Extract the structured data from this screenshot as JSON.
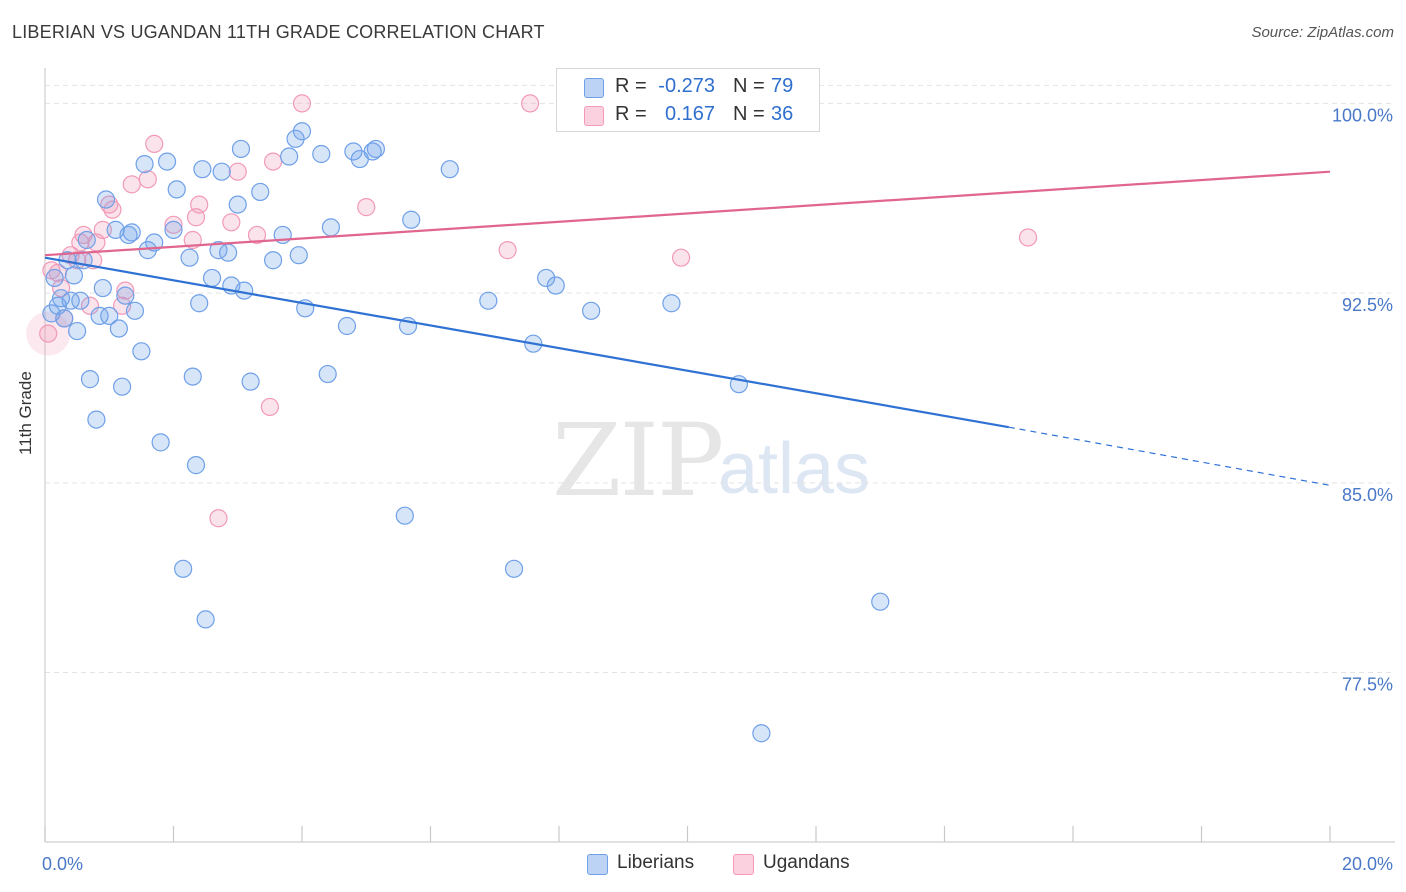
{
  "header": {
    "title": "LIBERIAN VS UGANDAN 11TH GRADE CORRELATION CHART",
    "source": "Source: ZipAtlas.com"
  },
  "watermark": {
    "zip": "ZIP",
    "atlas": "atlas"
  },
  "legend": {
    "rows": [
      {
        "r_label": "R =",
        "r_value": "-0.273",
        "n_label": "N =",
        "n_value": "79",
        "color": "#6fa0e8"
      },
      {
        "r_label": "R =",
        "r_value": "0.167",
        "n_label": "N =",
        "n_value": "36",
        "color": "#f29ab7"
      }
    ]
  },
  "bottom_legend": {
    "liberians": "Liberians",
    "ugandans": "Ugandans"
  },
  "chart_data": {
    "type": "scatter",
    "title": "LIBERIAN VS UGANDAN 11TH GRADE CORRELATION CHART",
    "xlabel": "",
    "ylabel": "11th Grade",
    "xlim": [
      0,
      20
    ],
    "ylim": [
      70.8,
      101.4
    ],
    "x_tick_labels": [
      {
        "value": 0,
        "label": "0.0%"
      },
      {
        "value": 20,
        "label": "20.0%"
      }
    ],
    "y_tick_labels": [
      {
        "value": 100,
        "label": "100.0%"
      },
      {
        "value": 92.5,
        "label": "92.5%"
      },
      {
        "value": 85,
        "label": "85.0%"
      },
      {
        "value": 77.5,
        "label": "77.5%"
      }
    ],
    "grid": true,
    "legend_position": "top-center",
    "series": [
      {
        "name": "Liberians",
        "color": "#6fa0e8",
        "trend": {
          "x0": 0,
          "y0": 93.9,
          "x1": 15.0,
          "y1": 87.2,
          "dash_to_x": 20,
          "dash_to_y": 84.9
        },
        "points": [
          [
            0.1,
            91.7
          ],
          [
            0.15,
            93.1
          ],
          [
            0.2,
            92.0
          ],
          [
            0.3,
            91.5
          ],
          [
            0.35,
            93.8
          ],
          [
            0.4,
            92.2
          ],
          [
            0.45,
            93.2
          ],
          [
            0.5,
            91.0
          ],
          [
            0.55,
            92.2
          ],
          [
            0.6,
            93.8
          ],
          [
            0.7,
            89.1
          ],
          [
            0.8,
            87.5
          ],
          [
            0.85,
            91.6
          ],
          [
            0.9,
            92.7
          ],
          [
            0.95,
            96.2
          ],
          [
            1.0,
            91.6
          ],
          [
            1.1,
            95.0
          ],
          [
            1.15,
            91.1
          ],
          [
            1.2,
            88.8
          ],
          [
            1.25,
            92.4
          ],
          [
            1.35,
            94.9
          ],
          [
            1.4,
            91.8
          ],
          [
            1.5,
            90.2
          ],
          [
            1.55,
            97.6
          ],
          [
            1.6,
            94.2
          ],
          [
            1.7,
            94.5
          ],
          [
            1.8,
            86.6
          ],
          [
            1.9,
            97.7
          ],
          [
            2.0,
            95.0
          ],
          [
            2.05,
            96.6
          ],
          [
            2.15,
            81.6
          ],
          [
            2.25,
            93.9
          ],
          [
            2.3,
            89.2
          ],
          [
            2.35,
            85.7
          ],
          [
            2.4,
            92.1
          ],
          [
            2.45,
            97.4
          ],
          [
            2.5,
            79.6
          ],
          [
            2.6,
            93.1
          ],
          [
            2.75,
            97.3
          ],
          [
            2.85,
            94.1
          ],
          [
            2.9,
            92.8
          ],
          [
            3.0,
            96.0
          ],
          [
            3.05,
            98.2
          ],
          [
            3.2,
            89.0
          ],
          [
            3.35,
            96.5
          ],
          [
            3.55,
            93.8
          ],
          [
            3.7,
            94.8
          ],
          [
            3.8,
            97.9
          ],
          [
            3.9,
            98.6
          ],
          [
            3.95,
            94.0
          ],
          [
            4.0,
            98.9
          ],
          [
            4.05,
            91.9
          ],
          [
            4.3,
            98.0
          ],
          [
            4.4,
            89.3
          ],
          [
            4.45,
            95.1
          ],
          [
            4.7,
            91.2
          ],
          [
            4.8,
            98.1
          ],
          [
            4.9,
            97.8
          ],
          [
            5.1,
            98.1
          ],
          [
            5.15,
            98.2
          ],
          [
            5.6,
            83.7
          ],
          [
            5.65,
            91.2
          ],
          [
            5.7,
            95.4
          ],
          [
            6.3,
            97.4
          ],
          [
            6.9,
            92.2
          ],
          [
            7.3,
            81.6
          ],
          [
            7.6,
            90.5
          ],
          [
            7.8,
            93.1
          ],
          [
            7.95,
            92.8
          ],
          [
            8.5,
            91.8
          ],
          [
            9.75,
            92.1
          ],
          [
            10.8,
            88.9
          ],
          [
            11.15,
            75.1
          ],
          [
            13.0,
            80.3
          ],
          [
            0.25,
            92.3
          ],
          [
            0.65,
            94.6
          ],
          [
            1.3,
            94.8
          ],
          [
            2.7,
            94.2
          ],
          [
            3.1,
            92.6
          ]
        ]
      },
      {
        "name": "Ugandans",
        "color": "#f29ab7",
        "trend": {
          "x0": 0,
          "y0": 94.0,
          "x1": 20,
          "y1": 97.3
        },
        "points": [
          [
            0.05,
            90.9
          ],
          [
            0.1,
            93.4
          ],
          [
            0.2,
            93.3
          ],
          [
            0.3,
            91.5
          ],
          [
            0.4,
            94.0
          ],
          [
            0.5,
            93.8
          ],
          [
            0.55,
            94.5
          ],
          [
            0.6,
            94.8
          ],
          [
            0.7,
            92.0
          ],
          [
            0.75,
            93.8
          ],
          [
            0.8,
            94.5
          ],
          [
            0.9,
            95.0
          ],
          [
            1.0,
            96.0
          ],
          [
            1.05,
            95.8
          ],
          [
            1.2,
            92.0
          ],
          [
            1.25,
            92.6
          ],
          [
            1.35,
            96.8
          ],
          [
            1.6,
            97.0
          ],
          [
            1.7,
            98.4
          ],
          [
            2.0,
            95.2
          ],
          [
            2.3,
            94.6
          ],
          [
            2.35,
            95.5
          ],
          [
            2.4,
            96.0
          ],
          [
            2.7,
            83.6
          ],
          [
            2.9,
            95.3
          ],
          [
            3.0,
            97.3
          ],
          [
            3.3,
            94.8
          ],
          [
            3.5,
            88.0
          ],
          [
            3.55,
            97.7
          ],
          [
            4.0,
            100.0
          ],
          [
            5.0,
            95.9
          ],
          [
            7.2,
            94.2
          ],
          [
            7.55,
            100.0
          ],
          [
            9.9,
            93.9
          ],
          [
            15.3,
            94.7
          ],
          [
            0.25,
            92.7
          ]
        ]
      }
    ]
  }
}
